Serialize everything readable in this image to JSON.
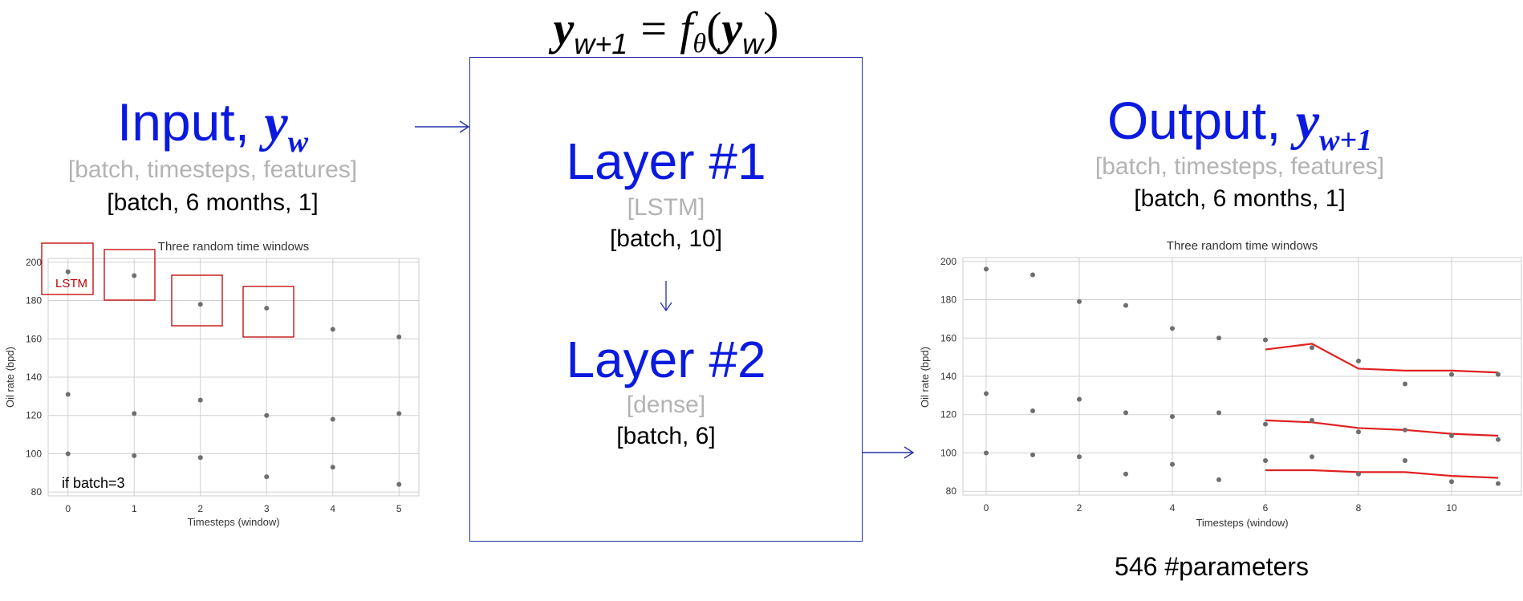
{
  "equation": {
    "lhs": "y",
    "lhs_sub": "w+1",
    "equals": "=",
    "func": "f",
    "func_sub": "θ",
    "open": "(",
    "arg": "y",
    "arg_sub": "w",
    "close": ")"
  },
  "input": {
    "label": "Input, ",
    "symbol": "y",
    "symbol_sub": "w",
    "shape_generic": "[batch, timesteps, features]",
    "shape_specific": "[batch, 6 months, 1]",
    "batch_note": "if batch=3",
    "lstm_tag": "LSTM"
  },
  "model": {
    "layer1": {
      "title": "Layer #1",
      "type": "[LSTM]",
      "shape": "[batch, 10]"
    },
    "layer2": {
      "title": "Layer #2",
      "type": "[dense]",
      "shape": "[batch, 6]"
    }
  },
  "output": {
    "label": "Output, ",
    "symbol": "y",
    "symbol_sub": "w+1",
    "shape_generic": "[batch, timesteps, features]",
    "shape_specific": "[batch, 6 months, 1]",
    "params": "546 #parameters"
  },
  "colors": {
    "heading_blue": "#0a1adf",
    "muted_gray": "#b3b3b3",
    "arrow_blue": "#2530a8",
    "lstm_box_red": "#c00000",
    "prediction_red": "#e02020",
    "point_gray": "#6e6e6e"
  },
  "chart_data": [
    {
      "type": "scatter",
      "title": "Three random time windows",
      "xlabel": "Timesteps (window)",
      "ylabel": "Oil rate (bpd)",
      "xlim": [
        -0.3,
        5.3
      ],
      "ylim": [
        78,
        202
      ],
      "xticks": [
        0,
        1,
        2,
        3,
        4,
        5
      ],
      "yticks": [
        80,
        100,
        120,
        140,
        160,
        180,
        200
      ],
      "grid": true,
      "series": [
        {
          "x": [
            0,
            1,
            2,
            3,
            4,
            5
          ],
          "y": [
            195,
            193,
            178,
            176,
            165,
            161
          ]
        },
        {
          "x": [
            0,
            1,
            2,
            3,
            4,
            5
          ],
          "y": [
            131,
            121,
            128,
            120,
            118,
            121
          ]
        },
        {
          "x": [
            0,
            1,
            2,
            3,
            4,
            5
          ],
          "y": [
            100,
            99,
            98,
            88,
            93,
            84
          ]
        }
      ]
    },
    {
      "type": "scatter",
      "title": "Three random time windows",
      "xlabel": "Timesteps (window)",
      "ylabel": "Oil rate (bpd)",
      "xlim": [
        -0.5,
        11.5
      ],
      "ylim": [
        78,
        202
      ],
      "xticks": [
        0,
        2,
        4,
        6,
        8,
        10
      ],
      "yticks": [
        80,
        100,
        120,
        140,
        160,
        180,
        200
      ],
      "grid": true,
      "series": [
        {
          "x": [
            0,
            1,
            2,
            3,
            4,
            5,
            6,
            7,
            8,
            9,
            10,
            11
          ],
          "y": [
            196,
            193,
            179,
            177,
            165,
            160,
            159,
            155,
            148,
            136,
            141,
            141
          ]
        },
        {
          "x": [
            0,
            1,
            2,
            3,
            4,
            5,
            6,
            7,
            8,
            9,
            10,
            11
          ],
          "y": [
            131,
            122,
            128,
            121,
            119,
            121,
            115,
            117,
            111,
            112,
            109,
            107
          ]
        },
        {
          "x": [
            0,
            1,
            2,
            3,
            4,
            5,
            6,
            7,
            8,
            9,
            10,
            11
          ],
          "y": [
            100,
            99,
            98,
            89,
            94,
            86,
            96,
            98,
            89,
            96,
            85,
            84
          ]
        }
      ],
      "predictions": [
        {
          "x": [
            6,
            7,
            8,
            9,
            10,
            11
          ],
          "y": [
            154,
            157,
            144,
            143,
            143,
            142
          ]
        },
        {
          "x": [
            6,
            7,
            8,
            9,
            10,
            11
          ],
          "y": [
            117,
            116,
            113,
            112,
            110,
            109
          ]
        },
        {
          "x": [
            6,
            7,
            8,
            9,
            10,
            11
          ],
          "y": [
            91,
            91,
            90,
            90,
            88,
            87
          ]
        }
      ]
    }
  ]
}
